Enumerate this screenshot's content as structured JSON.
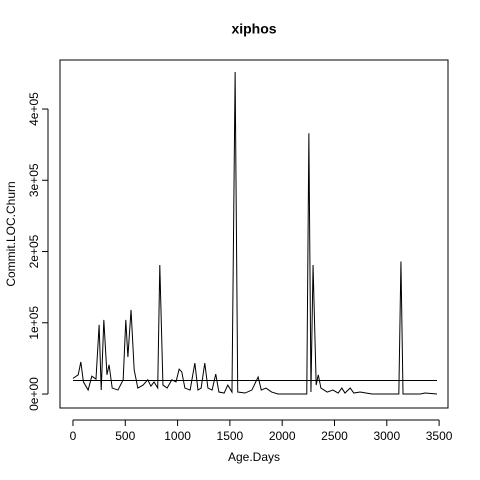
{
  "chart_data": {
    "type": "line",
    "title": "xiphos",
    "x_label": "Age.Days",
    "y_label": "Commit.LOC.Churn",
    "x": [
      0,
      50,
      75,
      100,
      145,
      180,
      220,
      250,
      270,
      295,
      325,
      345,
      375,
      430,
      480,
      505,
      525,
      555,
      585,
      620,
      670,
      715,
      745,
      775,
      810,
      830,
      860,
      900,
      945,
      985,
      1015,
      1040,
      1070,
      1120,
      1165,
      1195,
      1225,
      1260,
      1290,
      1330,
      1365,
      1395,
      1445,
      1480,
      1520,
      1550,
      1575,
      1645,
      1710,
      1770,
      1800,
      1845,
      1900,
      1960,
      2235,
      2255,
      2275,
      2295,
      2325,
      2345,
      2370,
      2430,
      2485,
      2535,
      2570,
      2600,
      2650,
      2685,
      2745,
      2800,
      2860,
      3115,
      3135,
      3155,
      3320,
      3365,
      3480
    ],
    "y": [
      22000,
      27000,
      45000,
      17000,
      5600,
      25000,
      21000,
      97000,
      5600,
      104000,
      27000,
      41000,
      8400,
      5600,
      20000,
      104000,
      52000,
      118000,
      34000,
      8400,
      12600,
      20000,
      11000,
      17000,
      8400,
      181000,
      12600,
      8400,
      20000,
      17000,
      35000,
      31000,
      8400,
      5600,
      43500,
      5600,
      8400,
      43500,
      8400,
      5600,
      28000,
      2800,
      1400,
      12600,
      2800,
      452000,
      2800,
      1400,
      5600,
      24000,
      5600,
      8400,
      2800,
      0,
      0,
      366000,
      2800,
      181000,
      12600,
      27000,
      8400,
      2800,
      5600,
      1400,
      8400,
      1400,
      8400,
      1400,
      2800,
      1400,
      0,
      0,
      186000,
      0,
      0,
      1400,
      0
    ],
    "hline": 19000,
    "color": "#000000",
    "xlim": [
      -124,
      3585
    ],
    "ylim": [
      -19600,
      468800
    ],
    "xticks": [
      0,
      500,
      1000,
      1500,
      2000,
      2500,
      3000,
      3500
    ],
    "yticks": [
      {
        "value": 0,
        "label": "0e+00"
      },
      {
        "value": 100000,
        "label": "1e+05"
      },
      {
        "value": 200000,
        "label": "2e+05"
      },
      {
        "value": 300000,
        "label": "3e+05"
      },
      {
        "value": 400000,
        "label": "4e+05"
      }
    ]
  }
}
